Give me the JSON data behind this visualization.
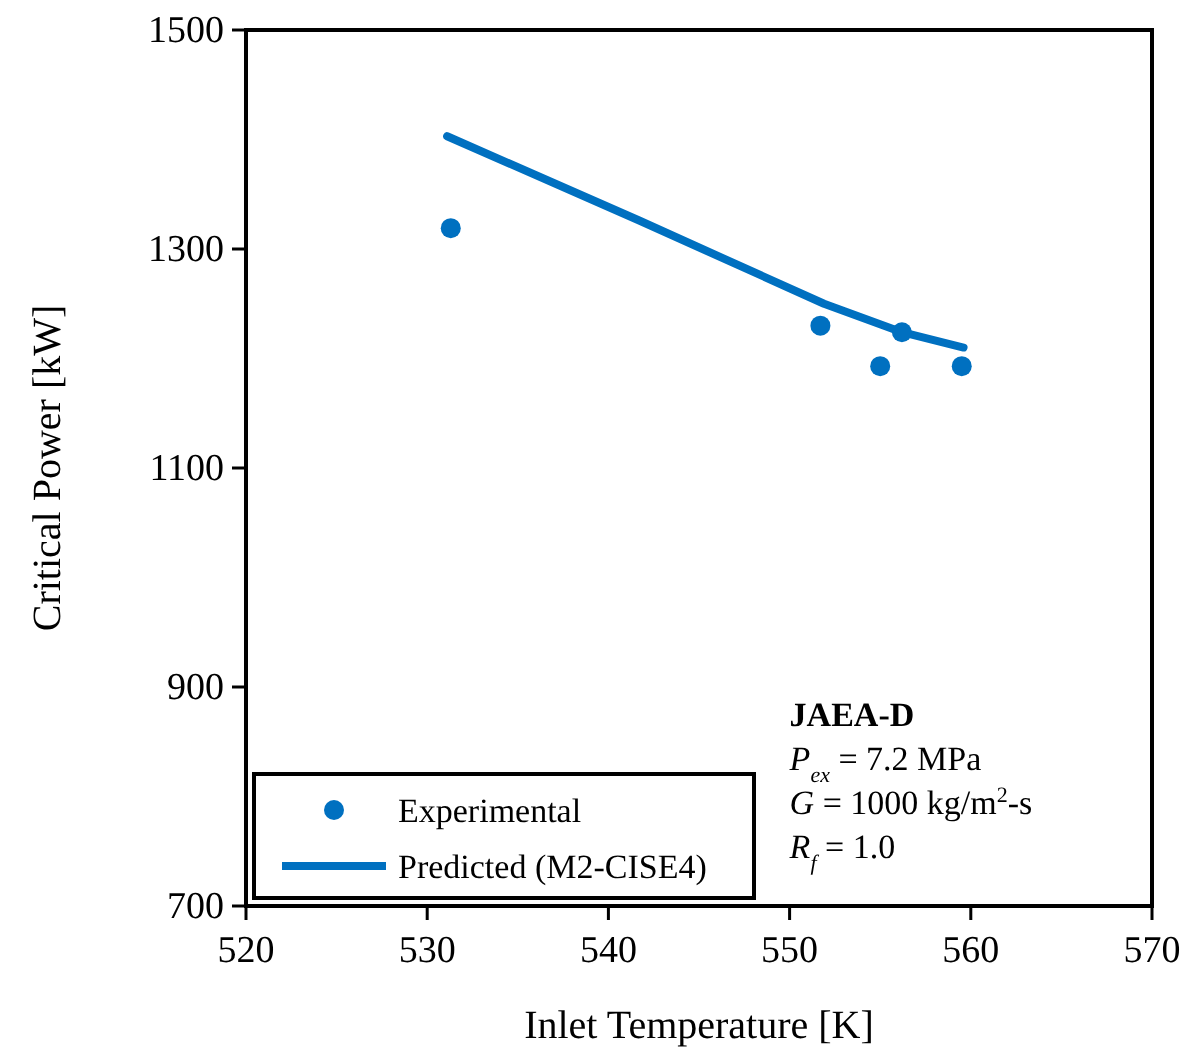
{
  "chart_data": {
    "type": "scatter",
    "xlabel": "Inlet Temperature [K]",
    "ylabel": "Critical Power [kW]",
    "xlim": [
      520,
      570
    ],
    "xticks": [
      520,
      530,
      540,
      550,
      560,
      570
    ],
    "ylim": [
      700,
      1500
    ],
    "yticks": [
      700,
      900,
      1100,
      1300,
      1500
    ],
    "grid": false,
    "legend": "bottom left",
    "series": [
      {
        "name": "Experimental",
        "marker": "circle",
        "color": "#0070c0",
        "x": [
          531.3,
          551.7,
          555.0,
          556.2,
          559.5
        ],
        "values": [
          1319,
          1230,
          1193,
          1224,
          1193
        ]
      },
      {
        "name": "Predicted (M2-CISE4)",
        "type": "line",
        "marker": "none",
        "line_style": "solid",
        "color": "#0070c0",
        "x": [
          531.1,
          541.7,
          551.9,
          556.2,
          559.6
        ],
        "values": [
          1403,
          1326,
          1250,
          1224,
          1210
        ]
      }
    ],
    "annotations": [
      "JAEA-D",
      "P$_{ex}$ = 7.2 MPa",
      "G = 1000 kg/m$^{2}$-s",
      "R$_{f}$ = 1.0"
    ]
  }
}
